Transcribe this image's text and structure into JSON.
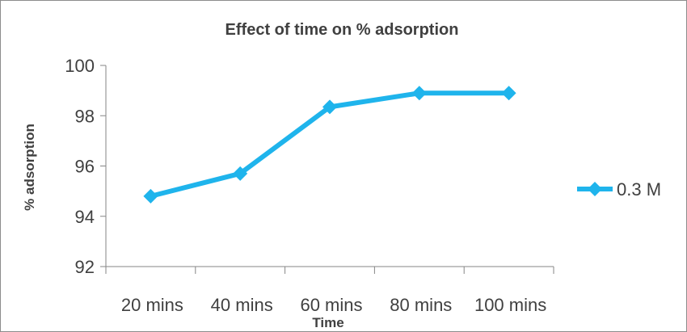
{
  "chart_data": {
    "type": "line",
    "title": "Effect of time on % adsorption",
    "xlabel": "Time",
    "ylabel": "% adsorption",
    "categories": [
      "20 mins",
      "40 mins",
      "60 mins",
      "80 mins",
      "100 mins"
    ],
    "series": [
      {
        "name": "0.3 M",
        "values": [
          94.8,
          95.7,
          98.35,
          98.9,
          98.9
        ],
        "color": "#1fb4ec",
        "marker": "diamond"
      }
    ],
    "ylim": [
      92,
      100
    ],
    "yticks": [
      "92",
      "94",
      "96",
      "98",
      "100"
    ],
    "grid": false,
    "legend_position": "right"
  }
}
